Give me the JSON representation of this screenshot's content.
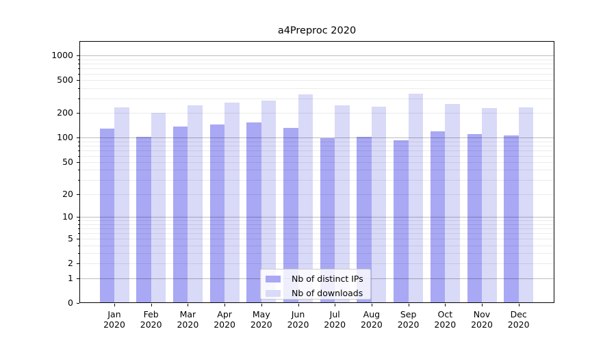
{
  "title": "a4Preproc 2020",
  "chart_data": {
    "type": "bar",
    "title": "a4Preproc 2020",
    "categories": [
      "Jan 2020",
      "Feb 2020",
      "Mar 2020",
      "Apr 2020",
      "May 2020",
      "Jun 2020",
      "Jul 2020",
      "Aug 2020",
      "Sep 2020",
      "Oct 2020",
      "Nov 2020",
      "Dec 2020"
    ],
    "series": [
      {
        "name": "Nb of distinct IPs",
        "color": "#a8a8f4",
        "values": [
          130,
          102,
          137,
          144,
          152,
          132,
          98,
          102,
          93,
          120,
          110,
          107
        ]
      },
      {
        "name": "Nb of downloads",
        "color": "#d9d9f8",
        "values": [
          234,
          200,
          247,
          266,
          281,
          338,
          248,
          240,
          345,
          259,
          230,
          235
        ]
      }
    ],
    "yscale": "log1p",
    "ylim": [
      0,
      1490
    ],
    "y_ticks": [
      1000,
      500,
      200,
      100,
      50,
      20,
      10,
      5,
      2,
      1,
      0
    ],
    "y_minor_ticks": [
      2,
      3,
      4,
      5,
      6,
      7,
      8,
      9,
      20,
      30,
      40,
      50,
      60,
      70,
      80,
      90,
      200,
      300,
      400,
      500,
      600,
      700,
      800,
      900
    ],
    "grid": "both",
    "legend_position": "lower center"
  },
  "x_axis": {
    "months": [
      "Jan",
      "Feb",
      "Mar",
      "Apr",
      "May",
      "Jun",
      "Jul",
      "Aug",
      "Sep",
      "Oct",
      "Nov",
      "Dec"
    ],
    "year": "2020"
  },
  "colors": {
    "bar_distinct_ips": "#a8a8f4",
    "bar_downloads": "#d9d9f8",
    "grid_major": "rgba(0,0,0,0.26)",
    "grid_minor": "rgba(0,0,0,0.08)",
    "spine": "#000000",
    "text": "#000000",
    "legend_border": "#cccccc",
    "legend_background": "rgba(255,255,255,0.8)"
  }
}
